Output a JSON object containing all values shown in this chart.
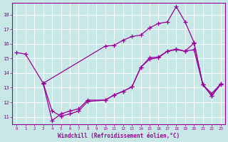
{
  "xlabel": "Windchill (Refroidissement éolien,°C)",
  "bg_color": "#c8e8e8",
  "line_color": "#990099",
  "xlim": [
    -0.5,
    23.5
  ],
  "ylim": [
    10.5,
    18.8
  ],
  "xticks": [
    0,
    1,
    2,
    3,
    4,
    5,
    6,
    7,
    8,
    9,
    10,
    11,
    12,
    13,
    14,
    15,
    16,
    17,
    18,
    19,
    20,
    21,
    22,
    23
  ],
  "yticks": [
    11,
    12,
    13,
    14,
    15,
    16,
    17,
    18
  ],
  "line1_x": [
    0,
    1,
    3,
    10,
    11,
    12,
    13,
    14,
    15,
    16,
    17,
    18,
    19,
    20,
    21,
    22,
    23
  ],
  "line1_y": [
    15.4,
    15.3,
    13.3,
    15.85,
    15.9,
    16.25,
    16.5,
    16.6,
    17.1,
    17.4,
    17.5,
    18.55,
    17.5,
    16.1,
    13.2,
    12.45,
    13.2
  ],
  "line2_x": [
    3,
    4,
    5,
    6,
    7,
    8,
    10,
    11,
    12,
    13,
    14,
    15,
    16,
    17,
    18,
    19,
    20,
    21,
    22,
    23
  ],
  "line2_y": [
    13.3,
    11.4,
    11.05,
    11.2,
    11.4,
    12.05,
    12.15,
    12.5,
    12.75,
    13.05,
    14.4,
    14.95,
    15.05,
    15.5,
    15.6,
    15.5,
    16.05,
    13.2,
    12.45,
    13.25
  ],
  "line3_x": [
    3,
    4,
    5,
    6,
    7,
    8,
    10,
    11,
    12,
    13,
    14,
    15,
    16,
    17,
    18,
    19,
    20,
    21,
    22,
    23
  ],
  "line3_y": [
    13.25,
    10.75,
    11.2,
    11.4,
    11.55,
    12.15,
    12.15,
    12.5,
    12.75,
    13.05,
    14.4,
    15.05,
    15.1,
    15.5,
    15.65,
    15.5,
    15.6,
    13.2,
    12.6,
    13.25
  ]
}
